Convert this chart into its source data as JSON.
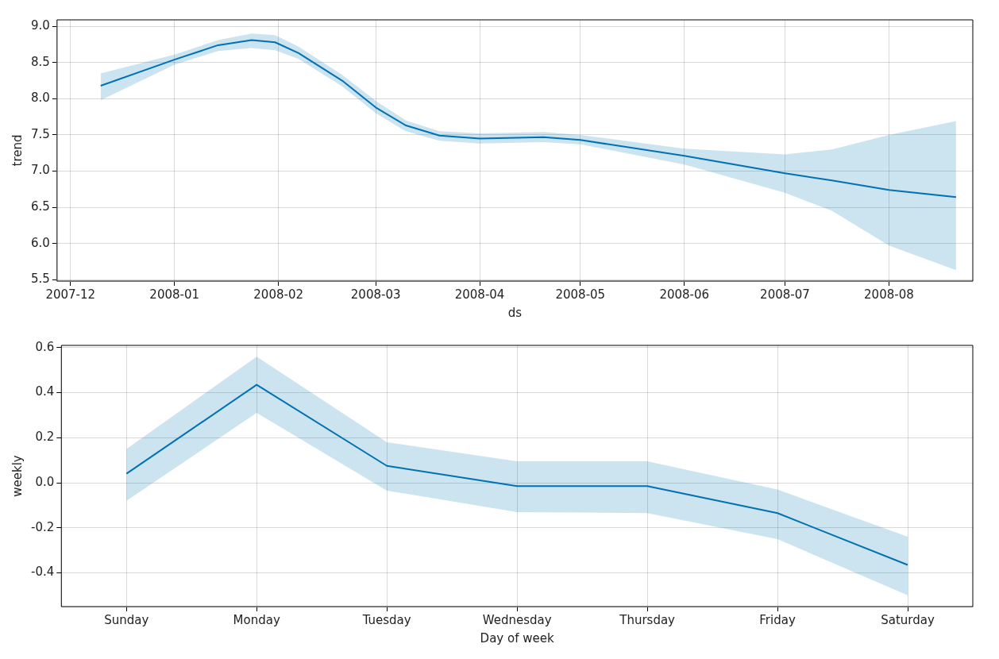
{
  "chart_data": [
    {
      "type": "line",
      "xlabel": "ds",
      "ylabel": "trend",
      "x": [
        "2007-12-10",
        "2008-01-01",
        "2008-01-14",
        "2008-01-24",
        "2008-01-31",
        "2008-02-07",
        "2008-02-20",
        "2008-03-01",
        "2008-03-10",
        "2008-03-20",
        "2008-04-01",
        "2008-04-20",
        "2008-05-01",
        "2008-06-01",
        "2008-07-01",
        "2008-07-15",
        "2008-08-01",
        "2008-08-21"
      ],
      "series": [
        {
          "color": "#0072b2",
          "values": [
            8.18,
            8.54,
            8.74,
            8.81,
            8.78,
            8.63,
            8.25,
            7.88,
            7.63,
            7.49,
            7.45,
            7.47,
            7.43,
            7.21,
            6.97,
            6.87,
            6.74,
            6.64
          ],
          "lower": [
            7.98,
            8.47,
            8.66,
            8.7,
            8.67,
            8.55,
            8.17,
            7.8,
            7.55,
            7.42,
            7.38,
            7.4,
            7.37,
            7.09,
            6.7,
            6.45,
            5.97,
            5.63
          ],
          "upper": [
            8.35,
            8.61,
            8.81,
            8.9,
            8.88,
            8.72,
            8.33,
            7.97,
            7.7,
            7.55,
            7.52,
            7.54,
            7.5,
            7.31,
            7.23,
            7.3,
            7.5,
            7.69
          ]
        }
      ],
      "xlim": [
        "2007-11-27",
        "2008-08-26"
      ],
      "xticks": [
        "2007-12",
        "2008-01",
        "2008-02",
        "2008-03",
        "2008-04",
        "2008-05",
        "2008-06",
        "2008-07",
        "2008-08"
      ],
      "ylim": [
        5.48,
        9.09
      ],
      "yticks": [
        5.5,
        {
          "value": 6,
          "label": "6.0"
        },
        6.5,
        {
          "value": 7,
          "label": "7.0"
        },
        7.5,
        {
          "value": 8,
          "label": "8.0"
        },
        8.5,
        {
          "value": 9,
          "label": "9.0"
        }
      ],
      "grid": true,
      "legend": false,
      "marker": "none",
      "line_style": "solid"
    },
    {
      "type": "line",
      "xlabel": "Day of week",
      "ylabel": "weekly",
      "categories": [
        "Sunday",
        "Monday",
        "Tuesday",
        "Wednesday",
        "Thursday",
        "Friday",
        "Saturday"
      ],
      "series": [
        {
          "color": "#0072b2",
          "values": [
            0.04,
            0.435,
            0.075,
            -0.015,
            -0.015,
            -0.135,
            -0.365
          ],
          "lower": [
            -0.08,
            0.31,
            -0.035,
            -0.13,
            -0.135,
            -0.25,
            -0.5
          ],
          "upper": [
            0.15,
            0.56,
            0.18,
            0.095,
            0.095,
            -0.03,
            -0.24
          ]
        }
      ],
      "ylim": [
        -0.55,
        0.61
      ],
      "yticks": [
        -0.4,
        -0.2,
        {
          "value": 0,
          "label": "0.0"
        },
        0.2,
        0.4,
        0.6
      ],
      "grid": true,
      "legend": false,
      "marker": "none",
      "line_style": "solid"
    }
  ]
}
